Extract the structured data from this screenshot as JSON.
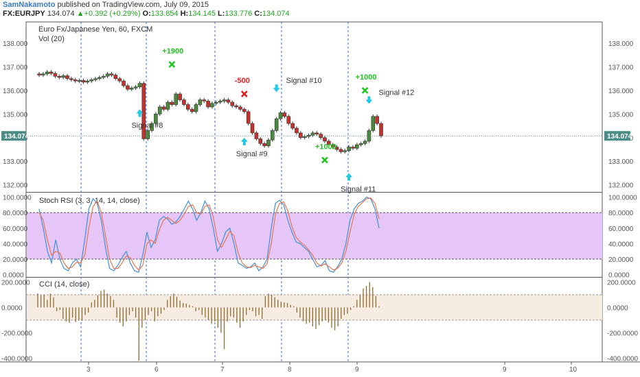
{
  "header": {
    "author": "SamNakamoto",
    "published_text": "published on TradingView.com, July 09, 2015",
    "symbol": "FX:EURJPY",
    "last_price": "134.074",
    "change": "+0.392 (+0.29%)",
    "open_label": "O:",
    "open_value": "133.854",
    "high_label": "H:",
    "high_value": "134.145",
    "low_label": "L:",
    "low_value": "133.776",
    "close_label": "C:",
    "close_value": "134.074"
  },
  "main_pane": {
    "title": "Euro Fx/Japanese Yen, 60, FXCM",
    "volume_label": "Vol (20)",
    "price_badge": "134.074"
  },
  "stoch_pane": {
    "title": "Stoch RSI (3, 3, 14, 14, close)"
  },
  "cci_pane": {
    "title": "CCI (14, close)"
  },
  "colors": {
    "bull": "#4a8a3c",
    "bear": "#c8302c",
    "stoch_k": "#3d8fd8",
    "stoch_d": "#e8744a",
    "stoch_band": "#e6c6f8",
    "cci_band": "#f6ece2",
    "cci_bar": "#8e6b2e",
    "signal_arrow": "#22c6e6",
    "profit_text": "#1ec41e",
    "loss_text": "#e02020",
    "badge_bg": "#4c8c86",
    "vline": "#2c6ed6"
  },
  "chart_data": [
    {
      "type": "candlestick",
      "title": "Euro Fx/Japanese Yen, 60, FXCM",
      "ylim": [
        131.7,
        138.9
      ],
      "y_ticks": [
        "132.000",
        "133.000",
        "134.000",
        "135.000",
        "136.000",
        "137.000",
        "138.000"
      ],
      "x_ticks": [
        "3",
        "6",
        "7",
        "8",
        "9",
        "9",
        "10"
      ],
      "close_prices": [
        136.65,
        136.7,
        136.78,
        136.72,
        136.6,
        136.55,
        136.62,
        136.5,
        136.45,
        136.4,
        136.42,
        136.35,
        136.4,
        136.45,
        136.5,
        136.55,
        136.6,
        136.7,
        136.65,
        136.5,
        136.4,
        136.2,
        136.05,
        136.1,
        136.15,
        136.3,
        133.95,
        134.3,
        134.6,
        135.0,
        135.3,
        135.2,
        135.5,
        135.4,
        135.85,
        135.6,
        135.4,
        135.2,
        135.1,
        135.4,
        135.6,
        135.55,
        135.3,
        135.45,
        135.5,
        135.55,
        135.6,
        135.5,
        135.35,
        135.3,
        135.2,
        135.1,
        134.6,
        134.2,
        133.95,
        133.75,
        133.65,
        133.9,
        134.3,
        134.8,
        135.05,
        134.9,
        134.6,
        134.4,
        134.2,
        134.0,
        134.05,
        134.1,
        134.2,
        134.15,
        134.0,
        133.85,
        133.7,
        133.6,
        133.5,
        133.4,
        133.45,
        133.6,
        133.55,
        133.7,
        133.75,
        133.85,
        134.3,
        134.9,
        134.6,
        134.07
      ],
      "signals": [
        {
          "label": "Signal #8",
          "direction": "up",
          "candle": 25
        },
        {
          "label": "Signal #9",
          "direction": "up",
          "candle": 51
        },
        {
          "label": "Signal #10",
          "direction": "down",
          "candle": 59
        },
        {
          "label": "Signal #11",
          "direction": "up",
          "candle": 77
        },
        {
          "label": "Signal #12",
          "direction": "down",
          "candle": 82
        }
      ],
      "outcomes": [
        {
          "label": "+1900",
          "candle": 33,
          "price": 137.1,
          "result": "profit"
        },
        {
          "label": "-500",
          "candle": 51,
          "price": 135.85,
          "result": "loss"
        },
        {
          "label": "+1000",
          "candle": 71,
          "price": 133.05,
          "result": "profit"
        },
        {
          "label": "+1000",
          "candle": 81,
          "price": 136.0,
          "result": "profit"
        }
      ],
      "last_price": 134.074
    },
    {
      "type": "line",
      "title": "Stoch RSI (3, 3, 14, 14, close)",
      "ylim": [
        -3,
        105
      ],
      "y_ticks": [
        "0.0000",
        "20.0000",
        "40.0000",
        "60.0000",
        "80.0000",
        "100.0000"
      ],
      "band": [
        20,
        80
      ],
      "series": [
        {
          "name": "K",
          "values": [
            85,
            60,
            30,
            15,
            45,
            20,
            8,
            5,
            15,
            20,
            10,
            45,
            85,
            98,
            92,
            70,
            35,
            8,
            5,
            12,
            22,
            30,
            15,
            5,
            3,
            25,
            55,
            35,
            45,
            70,
            75,
            72,
            65,
            68,
            75,
            85,
            95,
            85,
            70,
            80,
            95,
            85,
            60,
            30,
            40,
            55,
            60,
            40,
            15,
            12,
            8,
            10,
            15,
            5,
            10,
            20,
            60,
            92,
            96,
            90,
            70,
            55,
            42,
            40,
            35,
            30,
            20,
            10,
            12,
            18,
            5,
            3,
            10,
            20,
            40,
            70,
            85,
            92,
            95,
            100,
            98,
            85,
            60
          ]
        },
        {
          "name": "D",
          "values": [
            80,
            70,
            45,
            25,
            30,
            28,
            15,
            8,
            10,
            16,
            15,
            25,
            60,
            88,
            95,
            80,
            50,
            20,
            8,
            8,
            15,
            24,
            22,
            12,
            6,
            12,
            40,
            45,
            40,
            58,
            70,
            74,
            70,
            66,
            70,
            78,
            88,
            90,
            80,
            78,
            88,
            90,
            75,
            45,
            35,
            45,
            56,
            50,
            28,
            15,
            10,
            9,
            12,
            10,
            8,
            14,
            40,
            78,
            92,
            94,
            82,
            62,
            48,
            42,
            38,
            32,
            25,
            15,
            11,
            14,
            10,
            6,
            8,
            15,
            30,
            55,
            78,
            88,
            93,
            98,
            99,
            92,
            72
          ]
        }
      ]
    },
    {
      "type": "bar",
      "title": "CCI (14, close)",
      "ylim": [
        -430,
        230
      ],
      "y_ticks": [
        "-400.0000",
        "-200.0000",
        "0.0000",
        "200.0000"
      ],
      "band": [
        -100,
        100
      ],
      "values": [
        110,
        95,
        100,
        60,
        110,
        80,
        -30,
        -20,
        -90,
        -110,
        -120,
        -80,
        -115,
        -100,
        -105,
        -60,
        -40,
        40,
        60,
        95,
        130,
        140,
        110,
        90,
        60,
        -80,
        -120,
        -150,
        -110,
        -60,
        -30,
        -80,
        -420,
        -160,
        -100,
        -60,
        -30,
        -110,
        -70,
        -50,
        -20,
        60,
        90,
        110,
        85,
        55,
        35,
        30,
        20,
        10,
        -30,
        -20,
        -60,
        -80,
        -100,
        -130,
        -110,
        -160,
        -200,
        -330,
        -110,
        -70,
        -80,
        -120,
        -160,
        -110,
        -60,
        -20,
        -30,
        -70,
        -60,
        -90,
        90,
        110,
        100,
        80,
        60,
        45,
        40,
        35,
        20,
        10,
        -40,
        -80,
        -110,
        -130,
        -120,
        -150,
        -170,
        -140,
        -110,
        -100,
        -120,
        -160,
        -180,
        -150,
        -90,
        -60,
        -50,
        -20,
        10,
        60,
        100,
        150,
        170,
        200,
        160,
        90,
        10
      ]
    }
  ]
}
